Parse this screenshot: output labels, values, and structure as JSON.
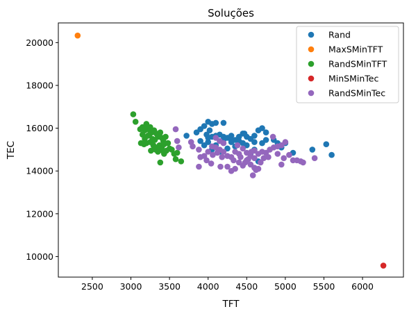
{
  "chart_data": {
    "type": "scatter",
    "title": "Soluções",
    "xlabel": "TFT",
    "ylabel": "TEC",
    "xlim": [
      2060,
      6530
    ],
    "ylim": [
      9040,
      20920
    ],
    "xticks": [
      2500,
      3000,
      3500,
      4000,
      4500,
      5000,
      5500,
      6000
    ],
    "yticks": [
      10000,
      12000,
      14000,
      16000,
      18000,
      20000
    ],
    "grid": false,
    "legend_position": "upper right",
    "series": [
      {
        "name": "Rand",
        "color": "#1f77b4",
        "points": [
          [
            3720,
            15650
          ],
          [
            3850,
            15800
          ],
          [
            3900,
            15950
          ],
          [
            3950,
            16100
          ],
          [
            4000,
            16300
          ],
          [
            4050,
            16200
          ],
          [
            4100,
            16250
          ],
          [
            4200,
            16250
          ],
          [
            3980,
            15700
          ],
          [
            4020,
            15900
          ],
          [
            4050,
            15600
          ],
          [
            4100,
            15650
          ],
          [
            4150,
            15700
          ],
          [
            4200,
            15600
          ],
          [
            4250,
            15550
          ],
          [
            4300,
            15650
          ],
          [
            4350,
            15450
          ],
          [
            4400,
            15600
          ],
          [
            4450,
            15750
          ],
          [
            4500,
            15600
          ],
          [
            4550,
            15500
          ],
          [
            4600,
            15650
          ],
          [
            4650,
            15900
          ],
          [
            4700,
            16000
          ],
          [
            4750,
            15800
          ],
          [
            4850,
            15450
          ],
          [
            4900,
            15300
          ],
          [
            4950,
            15100
          ],
          [
            5000,
            15300
          ],
          [
            5100,
            14850
          ],
          [
            5350,
            15000
          ],
          [
            5530,
            15250
          ],
          [
            5600,
            14750
          ],
          [
            4000,
            15350
          ],
          [
            4100,
            15200
          ],
          [
            4200,
            15450
          ],
          [
            4300,
            15350
          ],
          [
            4400,
            15400
          ],
          [
            4500,
            15200
          ],
          [
            4600,
            15350
          ],
          [
            4700,
            15300
          ],
          [
            3950,
            15200
          ],
          [
            4050,
            15000
          ],
          [
            4150,
            14900
          ],
          [
            4250,
            15050
          ],
          [
            4350,
            15150
          ],
          [
            4450,
            15300
          ],
          [
            4550,
            14800
          ],
          [
            4650,
            14450
          ],
          [
            4600,
            15000
          ],
          [
            4750,
            15450
          ],
          [
            3900,
            15400
          ],
          [
            4000,
            15550
          ],
          [
            4300,
            15450
          ],
          [
            4470,
            15750
          ]
        ]
      },
      {
        "name": "MaxSMinTFT",
        "color": "#ff7f0e",
        "points": [
          [
            2310,
            20330
          ]
        ]
      },
      {
        "name": "RandSMinTFT",
        "color": "#2ca02c",
        "points": [
          [
            3030,
            16650
          ],
          [
            3060,
            16300
          ],
          [
            3120,
            15950
          ],
          [
            3150,
            16050
          ],
          [
            3200,
            16200
          ],
          [
            3230,
            15950
          ],
          [
            3250,
            16050
          ],
          [
            3270,
            15800
          ],
          [
            3300,
            15900
          ],
          [
            3150,
            15700
          ],
          [
            3180,
            15500
          ],
          [
            3220,
            15650
          ],
          [
            3250,
            15350
          ],
          [
            3280,
            15500
          ],
          [
            3310,
            15450
          ],
          [
            3350,
            15600
          ],
          [
            3380,
            15800
          ],
          [
            3400,
            15550
          ],
          [
            3420,
            15400
          ],
          [
            3450,
            15600
          ],
          [
            3480,
            15300
          ],
          [
            3500,
            15050
          ],
          [
            3530,
            15000
          ],
          [
            3560,
            14800
          ],
          [
            3580,
            14550
          ],
          [
            3600,
            14850
          ],
          [
            3650,
            14450
          ],
          [
            3380,
            14400
          ],
          [
            3300,
            15150
          ],
          [
            3320,
            15000
          ],
          [
            3350,
            14900
          ],
          [
            3400,
            15100
          ],
          [
            3430,
            14800
          ],
          [
            3460,
            14950
          ],
          [
            3260,
            14950
          ],
          [
            3200,
            15300
          ],
          [
            3130,
            15300
          ],
          [
            3170,
            15250
          ],
          [
            3290,
            15200
          ],
          [
            3370,
            15200
          ],
          [
            3430,
            15250
          ],
          [
            3240,
            15700
          ],
          [
            3360,
            15100
          ],
          [
            3410,
            14950
          ],
          [
            3330,
            15750
          ],
          [
            3180,
            15900
          ],
          [
            3210,
            16100
          ]
        ]
      },
      {
        "name": "MinSMinTec",
        "color": "#d62728",
        "points": [
          [
            6270,
            9580
          ]
        ]
      },
      {
        "name": "RandSMinTec",
        "color": "#9467bd",
        "points": [
          [
            3580,
            15950
          ],
          [
            3600,
            15400
          ],
          [
            3620,
            15100
          ],
          [
            3780,
            15350
          ],
          [
            3800,
            15150
          ],
          [
            3880,
            15000
          ],
          [
            3950,
            14700
          ],
          [
            3980,
            14500
          ],
          [
            3900,
            14650
          ],
          [
            3880,
            14200
          ],
          [
            4000,
            14900
          ],
          [
            4050,
            15150
          ],
          [
            4100,
            15100
          ],
          [
            4150,
            15000
          ],
          [
            4200,
            14900
          ],
          [
            4250,
            14700
          ],
          [
            4300,
            14650
          ],
          [
            4350,
            14900
          ],
          [
            4400,
            14800
          ],
          [
            4450,
            15050
          ],
          [
            4500,
            14850
          ],
          [
            4550,
            14700
          ],
          [
            4600,
            14950
          ],
          [
            4650,
            14800
          ],
          [
            4700,
            14900
          ],
          [
            4750,
            14850
          ],
          [
            4800,
            15000
          ],
          [
            4850,
            15100
          ],
          [
            4900,
            15150
          ],
          [
            4950,
            15200
          ],
          [
            5000,
            15350
          ],
          [
            4980,
            14600
          ],
          [
            4950,
            14300
          ],
          [
            5050,
            14750
          ],
          [
            5100,
            14500
          ],
          [
            5150,
            14500
          ],
          [
            5200,
            14450
          ],
          [
            5230,
            14400
          ],
          [
            5380,
            14600
          ],
          [
            4100,
            15550
          ],
          [
            4150,
            15400
          ],
          [
            4200,
            15300
          ],
          [
            4250,
            14200
          ],
          [
            4300,
            14000
          ],
          [
            4350,
            14100
          ],
          [
            4400,
            14400
          ],
          [
            4450,
            14250
          ],
          [
            4500,
            14500
          ],
          [
            4550,
            14300
          ],
          [
            4600,
            14150
          ],
          [
            4620,
            14050
          ],
          [
            4650,
            14100
          ],
          [
            4580,
            13800
          ],
          [
            4680,
            14400
          ],
          [
            4720,
            14600
          ],
          [
            4060,
            14750
          ],
          [
            4120,
            14850
          ],
          [
            4180,
            14650
          ],
          [
            4330,
            14500
          ],
          [
            4420,
            14650
          ],
          [
            4520,
            14550
          ],
          [
            4560,
            14900
          ],
          [
            4600,
            14600
          ],
          [
            4480,
            14400
          ],
          [
            4380,
            15200
          ],
          [
            4840,
            15600
          ],
          [
            4900,
            14800
          ],
          [
            4040,
            14350
          ],
          [
            4780,
            14650
          ],
          [
            4160,
            14200
          ]
        ]
      }
    ]
  }
}
